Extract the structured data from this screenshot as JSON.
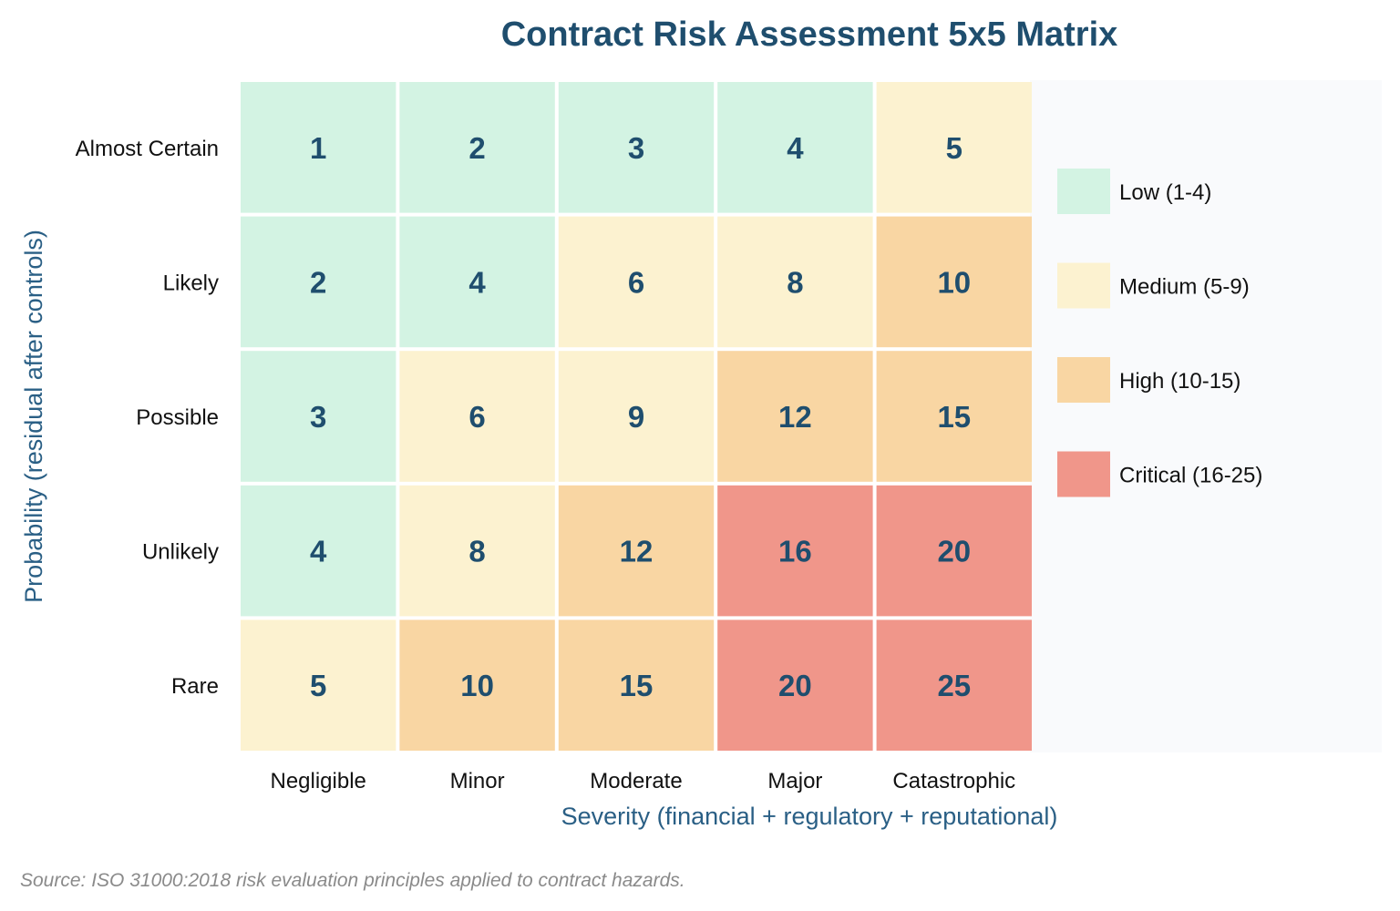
{
  "chart_data": {
    "type": "heatmap",
    "title": "Contract Risk Assessment 5x5 Matrix",
    "xlabel": "Severity (financial + regulatory + reputational)",
    "ylabel": "Probability (residual after controls)",
    "x_categories": [
      "Negligible",
      "Minor",
      "Moderate",
      "Major",
      "Catastrophic"
    ],
    "y_categories": [
      "Almost Certain",
      "Likely",
      "Possible",
      "Unlikely",
      "Rare"
    ],
    "values": [
      [
        1,
        2,
        3,
        4,
        5
      ],
      [
        2,
        4,
        6,
        8,
        10
      ],
      [
        3,
        6,
        9,
        12,
        15
      ],
      [
        4,
        8,
        12,
        16,
        20
      ],
      [
        5,
        10,
        15,
        20,
        25
      ]
    ],
    "legend": {
      "placement": "right",
      "items": [
        {
          "label": "Low (1-4)",
          "min": 1,
          "max": 4,
          "color": "#d3f3e3"
        },
        {
          "label": "Medium (5-9)",
          "min": 5,
          "max": 9,
          "color": "#fcf2d0"
        },
        {
          "label": "High (10-15)",
          "min": 10,
          "max": 15,
          "color": "#f9d6a3"
        },
        {
          "label": "Critical (16-25)",
          "min": 16,
          "max": 25,
          "color": "#f0968a"
        }
      ]
    },
    "grid": false
  },
  "source": "Source: ISO 31000:2018 risk evaluation principles applied to contract hazards.",
  "colors": {
    "title": "#1f4e6e",
    "axis_label": "#2a5f85",
    "cell_value": "#1f4e6e",
    "legend_panel_bg": "#f9fafc"
  }
}
